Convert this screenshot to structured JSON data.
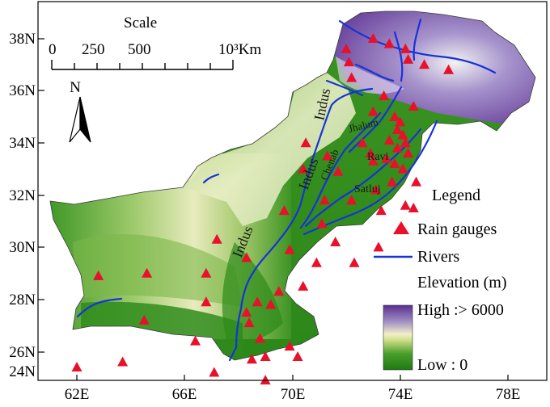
{
  "map": {
    "lat_ticks": [
      "38N",
      "36N",
      "34N",
      "32N",
      "30N",
      "28N",
      "26N",
      "24N"
    ],
    "lon_ticks": [
      "62E",
      "66E",
      "70E",
      "74E",
      "78E"
    ]
  },
  "scale": {
    "title": "Scale",
    "labels": [
      "0",
      "250",
      "500",
      "10³Km"
    ]
  },
  "north_arrow": {
    "label": "N"
  },
  "rivers": {
    "indus_1": "Indus",
    "indus_2": "Indus",
    "indus_3": "Indus",
    "chenab": "Chenab",
    "jhalum": "Jhalum",
    "ravi": "Ravi",
    "satluj": "Satluj"
  },
  "legend": {
    "title": "Legend",
    "rain_gauges": "Rain gauges",
    "rivers": "Rivers",
    "elevation": "Elevation (m)",
    "high": "High :> 6000",
    "low": "Low : 0"
  },
  "colors": {
    "gauge": "#e8102a",
    "river": "#1733d8",
    "lowland": "#2f8f1e",
    "highland": "#6a3fa0"
  },
  "gauges": [
    [
      72.0,
      37.6
    ],
    [
      73.0,
      38.0
    ],
    [
      73.6,
      37.8
    ],
    [
      74.2,
      37.6
    ],
    [
      72.1,
      37.1
    ],
    [
      74.3,
      37.2
    ],
    [
      74.9,
      37.0
    ],
    [
      75.8,
      36.8
    ],
    [
      72.2,
      36.5
    ],
    [
      73.4,
      35.8
    ],
    [
      74.5,
      35.4
    ],
    [
      73.0,
      35.2
    ],
    [
      73.8,
      35.0
    ],
    [
      74.0,
      34.8
    ],
    [
      73.9,
      34.5
    ],
    [
      74.1,
      34.3
    ],
    [
      73.6,
      34.1
    ],
    [
      74.2,
      34.0
    ],
    [
      73.9,
      33.8
    ],
    [
      74.3,
      33.6
    ],
    [
      72.6,
      34.0
    ],
    [
      72.9,
      33.6
    ],
    [
      73.0,
      33.3
    ],
    [
      73.5,
      33.4
    ],
    [
      73.8,
      33.2
    ],
    [
      74.1,
      33.0
    ],
    [
      73.7,
      32.5
    ],
    [
      74.6,
      32.5
    ],
    [
      73.1,
      32.2
    ],
    [
      72.2,
      31.8
    ],
    [
      70.5,
      34.0
    ],
    [
      70.4,
      33.0
    ],
    [
      71.3,
      33.5
    ],
    [
      71.7,
      32.9
    ],
    [
      71.2,
      31.8
    ],
    [
      73.3,
      31.4
    ],
    [
      74.2,
      31.6
    ],
    [
      74.5,
      31.5
    ],
    [
      69.7,
      31.4
    ],
    [
      71.1,
      30.9
    ],
    [
      71.6,
      30.2
    ],
    [
      67.2,
      30.3
    ],
    [
      69.9,
      29.9
    ],
    [
      73.2,
      30.0
    ],
    [
      68.3,
      29.6
    ],
    [
      70.9,
      29.4
    ],
    [
      72.3,
      29.4
    ],
    [
      62.8,
      28.9
    ],
    [
      64.6,
      29.0
    ],
    [
      66.8,
      29.0
    ],
    [
      70.4,
      28.5
    ],
    [
      69.5,
      28.3
    ],
    [
      66.8,
      27.9
    ],
    [
      68.7,
      27.9
    ],
    [
      69.2,
      27.8
    ],
    [
      68.3,
      27.5
    ],
    [
      68.4,
      27.1
    ],
    [
      64.5,
      27.2
    ],
    [
      68.8,
      26.5
    ],
    [
      66.4,
      26.4
    ],
    [
      69.9,
      26.2
    ],
    [
      68.5,
      25.7
    ],
    [
      69.0,
      25.8
    ],
    [
      70.2,
      25.8
    ],
    [
      62.0,
      25.4
    ],
    [
      63.7,
      25.6
    ],
    [
      67.1,
      25.2
    ],
    [
      69.0,
      24.9
    ]
  ]
}
